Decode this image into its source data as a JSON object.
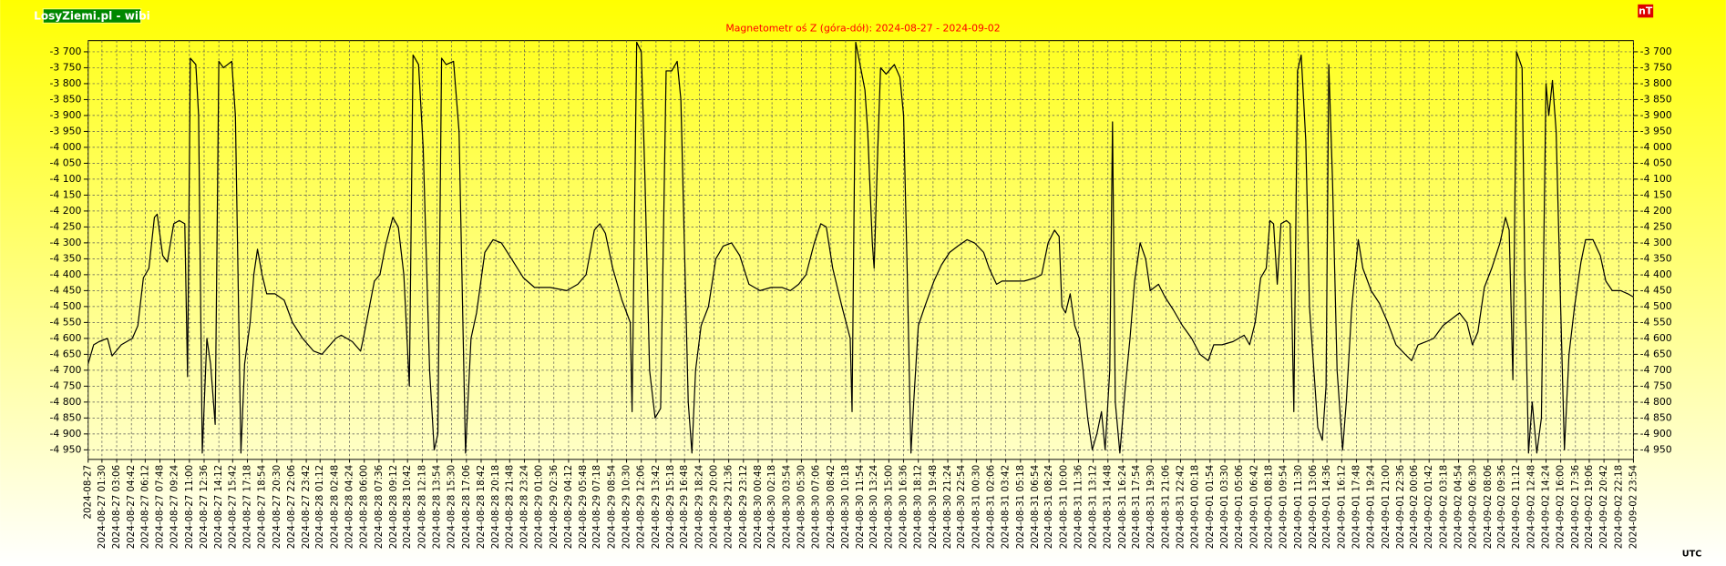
{
  "chart_data": {
    "type": "line",
    "title": "Magnetometr oś Z (góra-dół): 2024-08-27 - 2024-09-02",
    "source": "LosyZiemi.pl - wibi",
    "unit": "nT",
    "timezone": "UTC",
    "color": "#000000",
    "grid": true,
    "ylim": [
      -4980,
      -3665
    ],
    "yticks": [
      {
        "value": -3700,
        "label": "-3 700"
      },
      {
        "value": -3750,
        "label": "-3 750"
      },
      {
        "value": -3800,
        "label": "-3 800"
      },
      {
        "value": -3850,
        "label": "-3 850"
      },
      {
        "value": -3900,
        "label": "-3 900"
      },
      {
        "value": -3950,
        "label": "-3 950"
      },
      {
        "value": -4000,
        "label": "-4 000"
      },
      {
        "value": -4050,
        "label": "-4 050"
      },
      {
        "value": -4100,
        "label": "-4 100"
      },
      {
        "value": -4150,
        "label": "-4 150"
      },
      {
        "value": -4200,
        "label": "-4 200"
      },
      {
        "value": -4250,
        "label": "-4 250"
      },
      {
        "value": -4300,
        "label": "-4 300"
      },
      {
        "value": -4350,
        "label": "-4 350"
      },
      {
        "value": -4400,
        "label": "-4 400"
      },
      {
        "value": -4450,
        "label": "-4 450"
      },
      {
        "value": -4500,
        "label": "-4 500"
      },
      {
        "value": -4550,
        "label": "-4 550"
      },
      {
        "value": -4600,
        "label": "-4 600"
      },
      {
        "value": -4650,
        "label": "-4 650"
      },
      {
        "value": -4700,
        "label": "-4 700"
      },
      {
        "value": -4750,
        "label": "-4 750"
      },
      {
        "value": -4800,
        "label": "-4 800"
      },
      {
        "value": -4850,
        "label": "-4 850"
      },
      {
        "value": -4900,
        "label": "-4 900"
      },
      {
        "value": -4950,
        "label": "-4 950"
      }
    ],
    "xlim": [
      "2024-08-27",
      "2024-09-02 23:54"
    ],
    "xticks": [
      "2024-08-27",
      "2024-08-27 01:30",
      "2024-08-27 03:06",
      "2024-08-27 04:42",
      "2024-08-27 06:12",
      "2024-08-27 07:48",
      "2024-08-27 09:24",
      "2024-08-27 11:00",
      "2024-08-27 12:36",
      "2024-08-27 14:12",
      "2024-08-27 15:42",
      "2024-08-27 17:18",
      "2024-08-27 18:54",
      "2024-08-27 20:30",
      "2024-08-27 22:06",
      "2024-08-27 23:42",
      "2024-08-28 01:12",
      "2024-08-28 02:48",
      "2024-08-28 04:24",
      "2024-08-28 06:00",
      "2024-08-28 07:36",
      "2024-08-28 09:12",
      "2024-08-28 10:42",
      "2024-08-28 12:18",
      "2024-08-28 13:54",
      "2024-08-28 15:30",
      "2024-08-28 17:06",
      "2024-08-28 18:42",
      "2024-08-28 20:18",
      "2024-08-28 21:48",
      "2024-08-28 23:24",
      "2024-08-29 01:00",
      "2024-08-29 02:36",
      "2024-08-29 04:12",
      "2024-08-29 05:48",
      "2024-08-29 07:18",
      "2024-08-29 08:54",
      "2024-08-29 10:30",
      "2024-08-29 12:06",
      "2024-08-29 13:42",
      "2024-08-29 15:18",
      "2024-08-29 16:48",
      "2024-08-29 18:24",
      "2024-08-29 20:00",
      "2024-08-29 21:36",
      "2024-08-29 23:12",
      "2024-08-30 00:48",
      "2024-08-30 02:18",
      "2024-08-30 03:54",
      "2024-08-30 05:30",
      "2024-08-30 07:06",
      "2024-08-30 08:42",
      "2024-08-30 10:18",
      "2024-08-30 11:54",
      "2024-08-30 13:24",
      "2024-08-30 15:00",
      "2024-08-30 16:36",
      "2024-08-30 18:12",
      "2024-08-30 19:48",
      "2024-08-30 21:24",
      "2024-08-30 22:54",
      "2024-08-31 00:30",
      "2024-08-31 02:06",
      "2024-08-31 03:42",
      "2024-08-31 05:18",
      "2024-08-31 06:54",
      "2024-08-31 08:24",
      "2024-08-31 10:00",
      "2024-08-31 11:36",
      "2024-08-31 13:12",
      "2024-08-31 14:48",
      "2024-08-31 16:24",
      "2024-08-31 17:54",
      "2024-08-31 19:30",
      "2024-08-31 21:06",
      "2024-08-31 22:42",
      "2024-09-01 00:18",
      "2024-09-01 01:54",
      "2024-09-01 03:30",
      "2024-09-01 05:06",
      "2024-09-01 06:42",
      "2024-09-01 08:18",
      "2024-09-01 09:54",
      "2024-09-01 11:30",
      "2024-09-01 13:06",
      "2024-09-01 14:36",
      "2024-09-01 16:12",
      "2024-09-01 17:48",
      "2024-09-01 19:24",
      "2024-09-01 21:00",
      "2024-09-01 22:36",
      "2024-09-02 00:06",
      "2024-09-02 01:42",
      "2024-09-02 03:18",
      "2024-09-02 04:54",
      "2024-09-02 06:30",
      "2024-09-02 08:06",
      "2024-09-02 09:36",
      "2024-09-02 11:12",
      "2024-09-02 12:48",
      "2024-09-02 14:24",
      "2024-09-02 16:00",
      "2024-09-02 17:36",
      "2024-09-02 19:06",
      "2024-09-02 20:42",
      "2024-09-02 22:18",
      "2024-09-02 23:54"
    ],
    "x": [
      "2024-08-27 00:00",
      "2024-08-27 00:36",
      "2024-08-27 01:12",
      "2024-08-27 02:06",
      "2024-08-27 02:36",
      "2024-08-27 03:36",
      "2024-08-27 04:48",
      "2024-08-27 05:24",
      "2024-08-27 06:00",
      "2024-08-27 06:36",
      "2024-08-27 07:12",
      "2024-08-27 07:30",
      "2024-08-27 08:06",
      "2024-08-27 08:36",
      "2024-08-27 09:18",
      "2024-08-27 09:54",
      "2024-08-27 10:30",
      "2024-08-27 10:48",
      "2024-08-27 11:06",
      "2024-08-27 11:42",
      "2024-08-27 12:00",
      "2024-08-27 12:24",
      "2024-08-27 12:54",
      "2024-08-27 13:18",
      "2024-08-27 13:48",
      "2024-08-27 14:12",
      "2024-08-27 14:42",
      "2024-08-27 15:36",
      "2024-08-27 16:00",
      "2024-08-27 16:36",
      "2024-08-27 17:00",
      "2024-08-27 17:36",
      "2024-08-27 18:00",
      "2024-08-27 18:24",
      "2024-08-27 18:54",
      "2024-08-27 19:24",
      "2024-08-27 20:18",
      "2024-08-27 21:18",
      "2024-08-27 22:12",
      "2024-08-27 23:18",
      "2024-08-28 00:30",
      "2024-08-28 01:24",
      "2024-08-28 02:18",
      "2024-08-28 02:54",
      "2024-08-28 03:30",
      "2024-08-28 04:42",
      "2024-08-28 05:36",
      "2024-08-28 05:54",
      "2024-08-28 07:06",
      "2024-08-28 07:42",
      "2024-08-28 08:18",
      "2024-08-28 09:06",
      "2024-08-28 09:42",
      "2024-08-28 10:18",
      "2024-08-28 10:54",
      "2024-08-28 11:18",
      "2024-08-28 11:54",
      "2024-08-28 12:24",
      "2024-08-28 13:06",
      "2024-08-28 13:36",
      "2024-08-28 14:00",
      "2024-08-28 14:24",
      "2024-08-28 14:54",
      "2024-08-28 15:42",
      "2024-08-28 16:18",
      "2024-08-28 17:00",
      "2024-08-28 17:36",
      "2024-08-28 18:12",
      "2024-08-28 19:06",
      "2024-08-28 20:00",
      "2024-08-28 20:54",
      "2024-08-28 22:00",
      "2024-08-28 23:18",
      "2024-08-29 00:30",
      "2024-08-29 02:12",
      "2024-08-29 04:00",
      "2024-08-29 05:12",
      "2024-08-29 06:06",
      "2024-08-29 07:00",
      "2024-08-29 07:36",
      "2024-08-29 08:12",
      "2024-08-29 09:00",
      "2024-08-29 10:00",
      "2024-08-29 10:54",
      "2024-08-29 11:06",
      "2024-08-29 11:36",
      "2024-08-29 12:06",
      "2024-08-29 12:30",
      "2024-08-29 13:00",
      "2024-08-29 13:36",
      "2024-08-29 14:12",
      "2024-08-29 14:48",
      "2024-08-29 15:24",
      "2024-08-29 16:00",
      "2024-08-29 16:24",
      "2024-08-29 17:12",
      "2024-08-29 17:36",
      "2024-08-29 18:00",
      "2024-08-29 18:36",
      "2024-08-29 19:24",
      "2024-08-29 20:12",
      "2024-08-29 21:00",
      "2024-08-29 21:54",
      "2024-08-29 22:48",
      "2024-08-29 23:48",
      "2024-08-30 01:00",
      "2024-08-30 02:12",
      "2024-08-30 03:24",
      "2024-08-30 04:18",
      "2024-08-30 05:12",
      "2024-08-30 06:00",
      "2024-08-30 06:54",
      "2024-08-30 07:36",
      "2024-08-30 08:12",
      "2024-08-30 08:54",
      "2024-08-30 09:54",
      "2024-08-30 10:48",
      "2024-08-30 11:00",
      "2024-08-30 11:24",
      "2024-08-30 12:00",
      "2024-08-30 12:24",
      "2024-08-30 12:42",
      "2024-08-30 13:12",
      "2024-08-30 13:24",
      "2024-08-30 13:48",
      "2024-08-30 14:06",
      "2024-08-30 14:42",
      "2024-08-30 15:36",
      "2024-08-30 16:12",
      "2024-08-30 16:36",
      "2024-08-30 17:00",
      "2024-08-30 17:24",
      "2024-08-30 17:42",
      "2024-08-30 18:12",
      "2024-08-30 18:54",
      "2024-08-30 19:54",
      "2024-08-30 20:42",
      "2024-08-30 21:36",
      "2024-08-30 22:30",
      "2024-08-30 23:30",
      "2024-08-31 00:18",
      "2024-08-31 01:18",
      "2024-08-31 01:54",
      "2024-08-31 02:42",
      "2024-08-31 03:18",
      "2024-08-31 04:30",
      "2024-08-31 05:42",
      "2024-08-31 06:54",
      "2024-08-31 07:36",
      "2024-08-31 08:18",
      "2024-08-31 09:00",
      "2024-08-31 09:30",
      "2024-08-31 09:48",
      "2024-08-31 10:12",
      "2024-08-31 10:42",
      "2024-08-31 11:12",
      "2024-08-31 11:42",
      "2024-08-31 12:06",
      "2024-08-31 12:36",
      "2024-08-31 13:06",
      "2024-08-31 13:36",
      "2024-08-31 14:06",
      "2024-08-31 14:30",
      "2024-08-31 15:00",
      "2024-08-31 15:18",
      "2024-08-31 15:36",
      "2024-08-31 16:06",
      "2024-08-31 16:42",
      "2024-08-31 17:12",
      "2024-08-31 17:42",
      "2024-08-31 18:18",
      "2024-08-31 18:54",
      "2024-08-31 19:24",
      "2024-08-31 20:18",
      "2024-08-31 21:00",
      "2024-08-31 21:54",
      "2024-08-31 22:54",
      "2024-08-31 23:54",
      "2024-09-01 00:48",
      "2024-09-01 01:42",
      "2024-09-01 02:18",
      "2024-09-01 03:12",
      "2024-09-01 04:24",
      "2024-09-01 05:36",
      "2024-09-01 06:12",
      "2024-09-01 06:48",
      "2024-09-01 07:24",
      "2024-09-01 08:00",
      "2024-09-01 08:24",
      "2024-09-01 08:48",
      "2024-09-01 09:12",
      "2024-09-01 09:36",
      "2024-09-01 10:12",
      "2024-09-01 10:36",
      "2024-09-01 11:00",
      "2024-09-01 11:24",
      "2024-09-01 11:48",
      "2024-09-01 12:18",
      "2024-09-01 12:42",
      "2024-09-01 13:18",
      "2024-09-01 13:36",
      "2024-09-01 14:06",
      "2024-09-01 14:30",
      "2024-09-01 14:48",
      "2024-09-01 15:12",
      "2024-09-01 15:42",
      "2024-09-01 16:18",
      "2024-09-01 16:42",
      "2024-09-01 17:18",
      "2024-09-01 18:00",
      "2024-09-01 18:30",
      "2024-09-01 19:24",
      "2024-09-01 20:18",
      "2024-09-01 21:12",
      "2024-09-01 22:06",
      "2024-09-01 23:06",
      "2024-09-01 23:48",
      "2024-09-02 00:30",
      "2024-09-02 01:24",
      "2024-09-02 02:12",
      "2024-09-02 03:12",
      "2024-09-02 04:06",
      "2024-09-02 05:00",
      "2024-09-02 05:48",
      "2024-09-02 06:24",
      "2024-09-02 07:00",
      "2024-09-02 07:42",
      "2024-09-02 08:30",
      "2024-09-02 09:24",
      "2024-09-02 10:00",
      "2024-09-02 10:24",
      "2024-09-02 10:48",
      "2024-09-02 11:12",
      "2024-09-02 11:48",
      "2024-09-02 12:06",
      "2024-09-02 12:30",
      "2024-09-02 12:54",
      "2024-09-02 13:24",
      "2024-09-02 13:54",
      "2024-09-02 14:24",
      "2024-09-02 14:42",
      "2024-09-02 15:06",
      "2024-09-02 15:30",
      "2024-09-02 15:54",
      "2024-09-02 16:24",
      "2024-09-02 16:54",
      "2024-09-02 17:30",
      "2024-09-02 18:12",
      "2024-09-02 18:42",
      "2024-09-02 19:30",
      "2024-09-02 20:18",
      "2024-09-02 20:54",
      "2024-09-02 21:36",
      "2024-09-02 22:30",
      "2024-09-02 23:18",
      "2024-09-02 23:54"
    ],
    "values": [
      -4680,
      -4620,
      -4610,
      -4600,
      -4655,
      -4620,
      -4600,
      -4560,
      -4410,
      -4380,
      -4220,
      -4210,
      -4340,
      -4360,
      -4240,
      -4230,
      -4240,
      -4720,
      -3720,
      -3740,
      -3900,
      -4960,
      -4600,
      -4680,
      -4870,
      -3730,
      -3750,
      -3730,
      -3900,
      -4960,
      -4680,
      -4550,
      -4400,
      -4320,
      -4400,
      -4460,
      -4460,
      -4480,
      -4550,
      -4600,
      -4640,
      -4650,
      -4620,
      -4600,
      -4590,
      -4610,
      -4640,
      -4600,
      -4420,
      -4400,
      -4310,
      -4220,
      -4250,
      -4400,
      -4750,
      -3710,
      -3740,
      -4000,
      -4700,
      -4950,
      -4900,
      -3720,
      -3740,
      -3730,
      -3950,
      -4960,
      -4600,
      -4520,
      -4330,
      -4290,
      -4300,
      -4350,
      -4410,
      -4440,
      -4440,
      -4450,
      -4430,
      -4400,
      -4260,
      -4240,
      -4270,
      -4380,
      -4480,
      -4550,
      -4830,
      -3670,
      -3700,
      -4100,
      -4700,
      -4850,
      -4820,
      -3760,
      -3760,
      -3730,
      -3850,
      -4800,
      -4960,
      -4700,
      -4560,
      -4500,
      -4350,
      -4310,
      -4300,
      -4340,
      -4430,
      -4450,
      -4440,
      -4440,
      -4450,
      -4430,
      -4400,
      -4300,
      -4240,
      -4250,
      -4380,
      -4500,
      -4600,
      -4830,
      -3670,
      -3760,
      -3820,
      -3950,
      -4300,
      -4380,
      -4000,
      -3750,
      -3770,
      -3740,
      -3780,
      -3900,
      -4400,
      -4960,
      -4800,
      -4560,
      -4500,
      -4420,
      -4370,
      -4330,
      -4310,
      -4290,
      -4300,
      -4330,
      -4380,
      -4430,
      -4420,
      -4420,
      -4420,
      -4410,
      -4400,
      -4300,
      -4260,
      -4280,
      -4500,
      -4520,
      -4460,
      -4560,
      -4600,
      -4700,
      -4850,
      -4950,
      -4900,
      -4830,
      -4950,
      -4700,
      -3920,
      -4800,
      -4960,
      -4750,
      -4600,
      -4420,
      -4300,
      -4350,
      -4450,
      -4430,
      -4470,
      -4510,
      -4560,
      -4600,
      -4650,
      -4670,
      -4620,
      -4620,
      -4610,
      -4590,
      -4620,
      -4550,
      -4410,
      -4380,
      -4230,
      -4240,
      -4430,
      -4240,
      -4230,
      -4240,
      -4830,
      -3760,
      -3710,
      -3980,
      -4500,
      -4750,
      -4880,
      -4920,
      -4750,
      -3740,
      -4100,
      -4700,
      -4950,
      -4800,
      -4500,
      -4290,
      -4380,
      -4450,
      -4490,
      -4550,
      -4620,
      -4650,
      -4670,
      -4620,
      -4610,
      -4600,
      -4560,
      -4540,
      -4520,
      -4550,
      -4620,
      -4580,
      -4440,
      -4380,
      -4300,
      -4220,
      -4260,
      -4730,
      -3700,
      -3750,
      -4400,
      -4960,
      -4800,
      -4960,
      -4850,
      -3800,
      -3900,
      -3790,
      -3950,
      -4400,
      -4950,
      -4650,
      -4500,
      -4360,
      -4290,
      -4290,
      -4340,
      -4420,
      -4450,
      -4450,
      -4460,
      -4470
    ]
  }
}
